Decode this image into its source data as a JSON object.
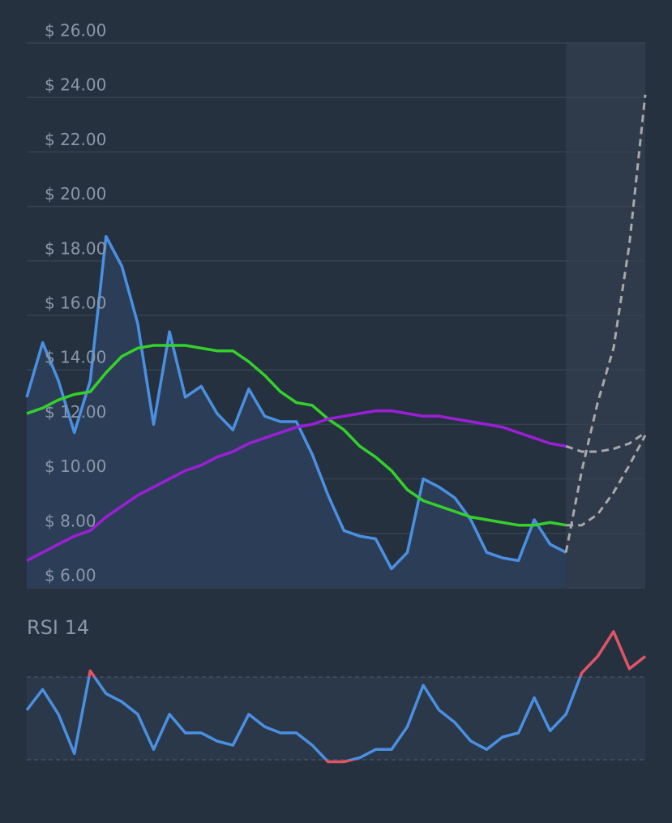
{
  "chart_data": [
    {
      "type": "line",
      "ylim": [
        6,
        26
      ],
      "yticks": [
        {
          "value": 6,
          "label": "$ 6.00"
        },
        {
          "value": 8,
          "label": "$ 8.00"
        },
        {
          "value": 10,
          "label": "$ 10.00"
        },
        {
          "value": 12,
          "label": "$ 12.00"
        },
        {
          "value": 14,
          "label": "$ 14.00"
        },
        {
          "value": 16,
          "label": "$ 16.00"
        },
        {
          "value": 18,
          "label": "$ 18.00"
        },
        {
          "value": 20,
          "label": "$ 20.00"
        },
        {
          "value": 22,
          "label": "$ 22.00"
        },
        {
          "value": 24,
          "label": "$ 24.00"
        },
        {
          "value": 26,
          "label": "$ 26.00"
        }
      ],
      "grid": true,
      "series": [
        {
          "color": "#4a90e2",
          "fill": true,
          "values": [
            13.0,
            15.0,
            13.6,
            11.7,
            13.6,
            18.9,
            17.8,
            15.7,
            12.0,
            15.4,
            13.0,
            13.4,
            12.4,
            11.8,
            13.3,
            12.3,
            12.1,
            12.1,
            10.9,
            9.4,
            8.1,
            7.9,
            7.8,
            6.7,
            7.3,
            10.0,
            9.7,
            9.3,
            8.5,
            7.3,
            7.1,
            7.0,
            8.5,
            7.6,
            7.3,
            null,
            null,
            null,
            null,
            null
          ]
        },
        {
          "color": "#34d12a",
          "values": [
            12.4,
            12.6,
            12.9,
            13.1,
            13.2,
            13.9,
            14.5,
            14.8,
            14.9,
            14.9,
            14.9,
            14.8,
            14.7,
            14.7,
            14.3,
            13.8,
            13.2,
            12.8,
            12.7,
            12.2,
            11.8,
            11.2,
            10.8,
            10.3,
            9.6,
            9.2,
            9.0,
            8.8,
            8.6,
            8.5,
            8.4,
            8.3,
            8.3,
            8.4,
            8.3,
            null,
            null,
            null,
            null,
            null
          ]
        },
        {
          "color": "#9b1fd6",
          "values": [
            7.0,
            7.3,
            7.6,
            7.9,
            8.1,
            8.6,
            9.0,
            9.4,
            9.7,
            10.0,
            10.3,
            10.5,
            10.8,
            11.0,
            11.3,
            11.5,
            11.7,
            11.9,
            12.0,
            12.2,
            12.3,
            12.4,
            12.5,
            12.5,
            12.4,
            12.3,
            12.3,
            12.2,
            12.1,
            12.0,
            11.9,
            11.7,
            11.5,
            11.3,
            11.2,
            null,
            null,
            null,
            null,
            null
          ]
        },
        {
          "color": "#a8a8a8",
          "dashed": true,
          "values": [
            null,
            null,
            null,
            null,
            null,
            null,
            null,
            null,
            null,
            null,
            null,
            null,
            null,
            null,
            null,
            null,
            null,
            null,
            null,
            null,
            null,
            null,
            null,
            null,
            null,
            null,
            null,
            null,
            null,
            null,
            null,
            null,
            null,
            null,
            7.3,
            10.3,
            12.8,
            14.8,
            18.6,
            24.1
          ]
        },
        {
          "color": "#a8a8a8",
          "dashed": true,
          "values": [
            null,
            null,
            null,
            null,
            null,
            null,
            null,
            null,
            null,
            null,
            null,
            null,
            null,
            null,
            null,
            null,
            null,
            null,
            null,
            null,
            null,
            null,
            null,
            null,
            null,
            null,
            null,
            null,
            null,
            null,
            null,
            null,
            null,
            null,
            11.2,
            11.0,
            11.0,
            11.1,
            11.3,
            11.7
          ]
        },
        {
          "color": "#a8a8a8",
          "dashed": true,
          "values": [
            null,
            null,
            null,
            null,
            null,
            null,
            null,
            null,
            null,
            null,
            null,
            null,
            null,
            null,
            null,
            null,
            null,
            null,
            null,
            null,
            null,
            null,
            null,
            null,
            null,
            null,
            null,
            null,
            null,
            null,
            null,
            null,
            null,
            null,
            8.3,
            8.3,
            8.7,
            9.5,
            10.5,
            11.6
          ]
        }
      ]
    },
    {
      "type": "line",
      "title": "RSI 14",
      "ylim": [
        20,
        100
      ],
      "levels": [
        30,
        70
      ],
      "color": "#4a90e2",
      "alert_color": "#e05565",
      "values": [
        54,
        64,
        52,
        33,
        73,
        62,
        58,
        52,
        35,
        52,
        43,
        43,
        39,
        37,
        52,
        46,
        43,
        43,
        37,
        29,
        29,
        31,
        35,
        35,
        46,
        66,
        54,
        48,
        39,
        35,
        41,
        43,
        60,
        44,
        52,
        72,
        80,
        92,
        74,
        80
      ]
    }
  ]
}
